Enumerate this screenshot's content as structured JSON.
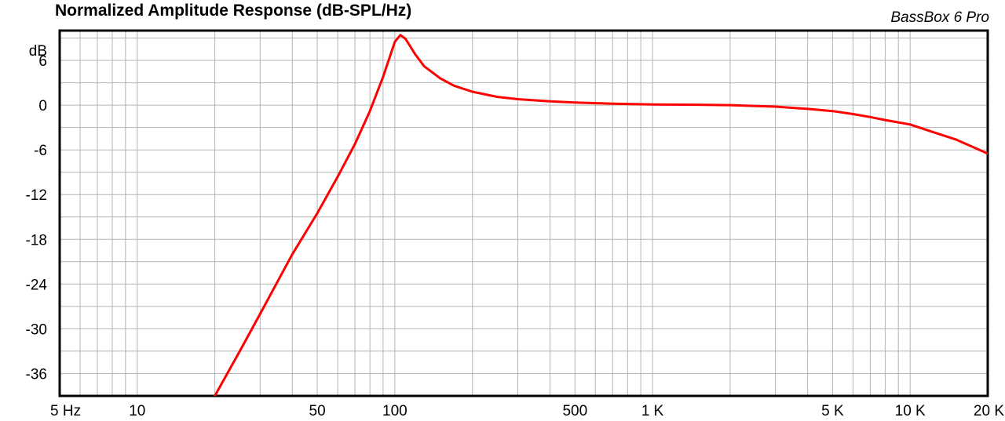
{
  "chart_data": {
    "type": "line",
    "title": "Normalized Amplitude Response (dB-SPL/Hz)",
    "watermark": "BassBox 6 Pro",
    "ylabel": "dB",
    "x_scale": "log",
    "xlim": [
      5,
      20000
    ],
    "ylim": [
      -39,
      10
    ],
    "grid": true,
    "y_ticks": [
      {
        "value": 6,
        "label": "6"
      },
      {
        "value": 0,
        "label": "0"
      },
      {
        "value": -6,
        "label": "-6"
      },
      {
        "value": -12,
        "label": "-12"
      },
      {
        "value": -18,
        "label": "-18"
      },
      {
        "value": -24,
        "label": "-24"
      },
      {
        "value": -30,
        "label": "-30"
      },
      {
        "value": -36,
        "label": "-36"
      }
    ],
    "x_ticks": [
      {
        "value": 5,
        "label": "5 Hz"
      },
      {
        "value": 10,
        "label": "10"
      },
      {
        "value": 50,
        "label": "50"
      },
      {
        "value": 100,
        "label": "100"
      },
      {
        "value": 500,
        "label": "500"
      },
      {
        "value": 1000,
        "label": "1 K"
      },
      {
        "value": 5000,
        "label": "5 K"
      },
      {
        "value": 10000,
        "label": "10 K"
      },
      {
        "value": 20000,
        "label": "20 K"
      }
    ],
    "series": [
      {
        "color": "#ff0000",
        "x": [
          20,
          25,
          30,
          40,
          50,
          60,
          70,
          80,
          90,
          100,
          105,
          110,
          120,
          130,
          150,
          170,
          200,
          250,
          300,
          400,
          500,
          700,
          1000,
          1500,
          2000,
          3000,
          4000,
          5000,
          6000,
          7000,
          8000,
          10000,
          12000,
          15000,
          20000
        ],
        "y": [
          -39,
          -33,
          -28,
          -20,
          -14.5,
          -9.6,
          -5.2,
          -0.8,
          3.8,
          8.5,
          9.4,
          8.9,
          6.8,
          5.2,
          3.6,
          2.6,
          1.8,
          1.1,
          0.8,
          0.5,
          0.35,
          0.2,
          0.1,
          0.05,
          0,
          -0.2,
          -0.5,
          -0.8,
          -1.2,
          -1.6,
          -2.0,
          -2.6,
          -3.5,
          -4.6,
          -6.5
        ]
      }
    ]
  }
}
